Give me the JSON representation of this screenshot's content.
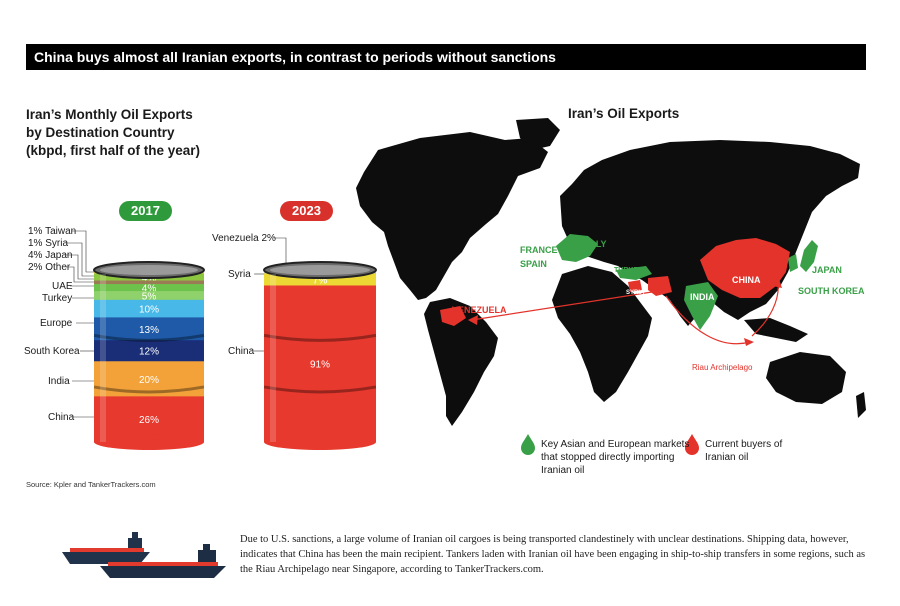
{
  "banner": "China buys almost all Iranian exports, in contrast to periods without sanctions",
  "left_title": [
    "Iran’s Monthly Oil Exports",
    "by Destination Country",
    "(kbpd, first half of the year)"
  ],
  "map_title": "Iran’s Oil Exports",
  "chart_data": [
    {
      "type": "bar",
      "year": "2017",
      "segments": [
        {
          "name": "Taiwan",
          "value": 1,
          "label": "1%",
          "color": "#c0c0c0"
        },
        {
          "name": "Syria",
          "value": 1,
          "label": "1%",
          "color": "#e9d33a"
        },
        {
          "name": "Japan",
          "value": 4,
          "label": "4%",
          "color": "#8dc63f"
        },
        {
          "name": "Other",
          "value": 2,
          "label": "2%",
          "color": "#9b7b55"
        },
        {
          "name": "UAE",
          "value": 4,
          "label": "4%",
          "color": "#6cc24a"
        },
        {
          "name": "Turkey",
          "value": 5,
          "label": "5%",
          "color": "#8fd16a"
        },
        {
          "name": "Europe",
          "value": 10,
          "label": "10%",
          "color": "#48b8e8"
        },
        {
          "name": "South Korea",
          "value": 13,
          "label": "13%",
          "color": "#1e5aa8"
        },
        {
          "name": "India",
          "value": 12,
          "label": "12%",
          "color": "#1a2e78"
        },
        {
          "name": "China",
          "value": 20,
          "label": "20%",
          "color": "#f3a23a"
        },
        {
          "name": "",
          "value": 26,
          "label": "26%",
          "color": "#e8392e"
        }
      ]
    },
    {
      "type": "bar",
      "year": "2023",
      "segments": [
        {
          "name": "Venezuela",
          "value": 2,
          "label": "2%",
          "color": "#c0c0c0"
        },
        {
          "name": "Syria",
          "value": 7,
          "label": "7%",
          "color": "#ecd834"
        },
        {
          "name": "China",
          "value": 91,
          "label": "91%",
          "color": "#e8392e"
        }
      ]
    }
  ],
  "labels_2017": [
    {
      "pct": "1%",
      "name": "Taiwan"
    },
    {
      "pct": "1%",
      "name": "Syria"
    },
    {
      "pct": "4%",
      "name": "Japan"
    },
    {
      "pct": "2%",
      "name": "Other"
    },
    {
      "pct": "",
      "name": "UAE"
    },
    {
      "pct": "",
      "name": "Turkey"
    },
    {
      "pct": "",
      "name": "Europe"
    },
    {
      "pct": "",
      "name": "South Korea"
    },
    {
      "pct": "",
      "name": "India"
    },
    {
      "pct": "",
      "name": "China"
    }
  ],
  "labels_2023": {
    "venezuela": "Venezuela 2%",
    "syria": "Syria",
    "china": "China"
  },
  "map": {
    "green": [
      "FRANCE",
      "SPAIN",
      "ITALY",
      "TURKEY",
      "INDIA",
      "JAPAN",
      "SOUTH KOREA"
    ],
    "red": [
      "CHINA",
      "VENEZUELA",
      "SYRIA"
    ],
    "riau": "Riau Archipelago",
    "colors": {
      "land": "#0d0d0d",
      "green": "#3aa048",
      "red": "#e3332b"
    }
  },
  "legend": {
    "green": [
      "Key Asian and European markets",
      "that stopped directly importing",
      "Iranian oil"
    ],
    "red": [
      "Current buyers of",
      "Iranian oil"
    ]
  },
  "source": "Source: Kpler and TankerTrackers.com",
  "footnote": "Due to U.S. sanctions, a large volume of Iranian oil cargoes is being transported clandestinely with unclear destinations. Shipping data, however, indicates that China has been the main recipient. Tankers laden with Iranian oil have been engaging in ship-to-ship transfers in some regions, such as the Riau Archipelago near Singapore, according to TankerTrackers.com."
}
